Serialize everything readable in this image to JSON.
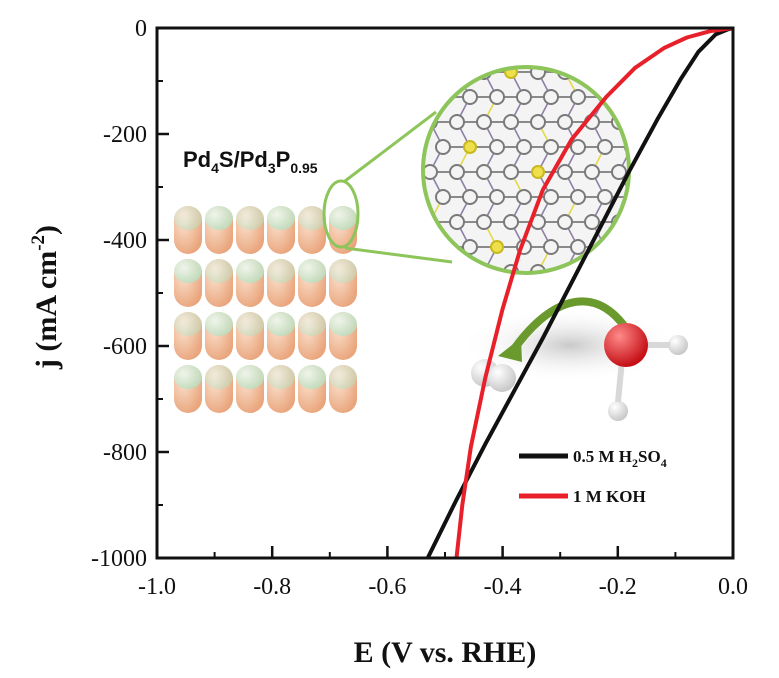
{
  "chart_data": {
    "type": "line",
    "xlabel": "E (V vs. RHE)",
    "ylabel": "j (mA cm",
    "ylabel_sup": "-2",
    "ylabel_close": ")",
    "xlim": [
      -1.0,
      0.0
    ],
    "ylim": [
      -1000,
      0
    ],
    "xticks": [
      "-1.0",
      "-0.8",
      "-0.6",
      "-0.4",
      "-0.2",
      "0.0"
    ],
    "yticks": [
      "0",
      "-200",
      "-400",
      "-600",
      "-800",
      "-1000"
    ],
    "xtick_values": [
      -1.0,
      -0.8,
      -0.6,
      -0.4,
      -0.2,
      0.0
    ],
    "ytick_values": [
      0,
      -200,
      -400,
      -600,
      -800,
      -1000
    ],
    "series": [
      {
        "name": "0.5 M H2SO4",
        "color": "#111111",
        "x": [
          -0.53,
          -0.48,
          -0.43,
          -0.38,
          -0.33,
          -0.28,
          -0.23,
          -0.18,
          -0.13,
          -0.09,
          -0.06,
          -0.03,
          -0.01,
          0.0
        ],
        "y": [
          -1000,
          -890,
          -785,
          -685,
          -585,
          -480,
          -375,
          -270,
          -170,
          -95,
          -45,
          -12,
          -3,
          0
        ]
      },
      {
        "name": "1 M KOH",
        "color": "#e8202a",
        "x": [
          -0.48,
          -0.47,
          -0.455,
          -0.43,
          -0.4,
          -0.37,
          -0.33,
          -0.28,
          -0.22,
          -0.17,
          -0.12,
          -0.08,
          -0.04,
          0.0
        ],
        "y": [
          -1000,
          -900,
          -790,
          -660,
          -530,
          -420,
          -305,
          -210,
          -130,
          -75,
          -38,
          -18,
          -6,
          0
        ]
      }
    ],
    "legend_position": "bottom-right",
    "legend": [
      {
        "main": "0.5 M H",
        "sub1": "2",
        "mid": "SO",
        "sub2": "4"
      },
      {
        "main": "1 M KOH"
      }
    ],
    "grid": false
  },
  "inset": {
    "formula_a": "Pd",
    "formula_a_sub": "4",
    "formula_b": "S/Pd",
    "formula_b_sub": "3",
    "formula_c": "P",
    "formula_c_sub": "0.95",
    "colors": {
      "peach": "#f0b890",
      "green": "#cfe7cf",
      "ring": "#8dc55a",
      "arrow": "#6a9a2e",
      "oxygen": "#e0181e"
    }
  }
}
